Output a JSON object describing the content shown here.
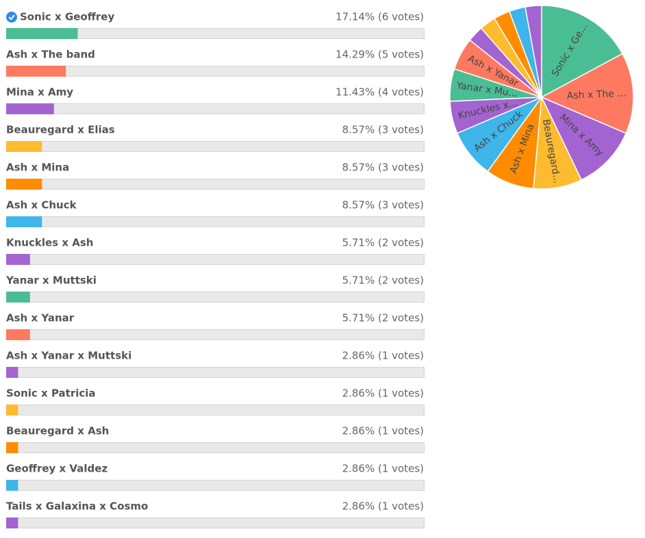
{
  "chart_data": [
    {
      "type": "bar",
      "categories": [
        "Sonic x Geoffrey",
        "Ash x The band",
        "Mina x Amy",
        "Beauregard x Elias",
        "Ash x Mina",
        "Ash x Chuck",
        "Knuckles x Ash",
        "Yanar x Muttski",
        "Ash x Yanar",
        "Ash x Yanar x Muttski",
        "Sonic x Patricia",
        "Beauregard x Ash",
        "Geoffrey x Valdez",
        "Tails x Galaxina x Cosmo"
      ],
      "values": [
        17.14,
        14.29,
        11.43,
        8.57,
        8.57,
        8.57,
        5.71,
        5.71,
        5.71,
        2.86,
        2.86,
        2.86,
        2.86,
        2.86
      ],
      "value_labels": [
        "17.14% (6 votes)",
        "14.29% (5 votes)",
        "11.43% (4 votes)",
        "8.57% (3 votes)",
        "8.57% (3 votes)",
        "8.57% (3 votes)",
        "5.71% (2 votes)",
        "5.71% (2 votes)",
        "5.71% (2 votes)",
        "2.86% (1 votes)",
        "2.86% (1 votes)",
        "2.86% (1 votes)",
        "2.86% (1 votes)",
        "2.86% (1 votes)"
      ],
      "colors": [
        "#4bbd94",
        "#ff7961",
        "#a364d1",
        "#fdbb2f",
        "#ff8c00",
        "#3fb5e9",
        "#a364d1",
        "#4bbd94",
        "#ff7961",
        "#a364d1",
        "#fdbb2f",
        "#ff8c00",
        "#3fb5e9",
        "#a364d1"
      ],
      "xlim": [
        0,
        100
      ]
    },
    {
      "type": "pie",
      "values": [
        17.14,
        14.29,
        11.43,
        8.57,
        8.57,
        8.57,
        5.71,
        5.71,
        5.71,
        2.86,
        2.86,
        2.86,
        2.86,
        2.86
      ],
      "labels": [
        "Sonic x Ge...",
        "Ash x The ...",
        "Mina x Amy",
        "Beauregard...",
        "Ash x Mina",
        "Ash x Chuck",
        "Knuckles x...",
        "Yanar x Mu...",
        "Ash x Yanar",
        null,
        null,
        null,
        null,
        null
      ],
      "colors": [
        "#4bbd94",
        "#ff7961",
        "#a364d1",
        "#fdbb2f",
        "#ff8c00",
        "#3fb5e9",
        "#a364d1",
        "#4bbd94",
        "#ff7961",
        "#a364d1",
        "#fdbb2f",
        "#ff8c00",
        "#3fb5e9",
        "#a364d1"
      ]
    }
  ]
}
